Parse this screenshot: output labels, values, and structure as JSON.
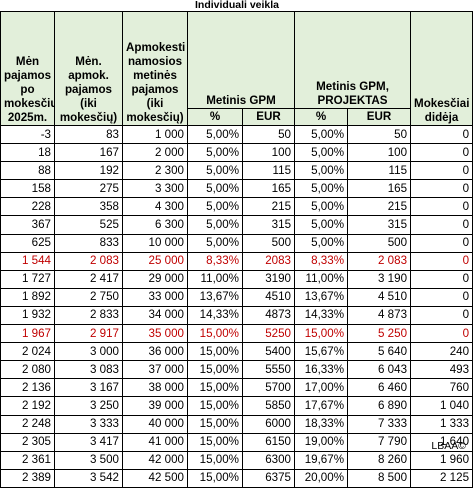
{
  "title": "Individuali veikla",
  "headers": {
    "c1": "Mėn pajamos po mokesčių 2025m.",
    "c2": "Mėn. apmok. pajamos (iki mokesčių)",
    "c3": "Apmokesti namosios metinės pajamos (iki mokesčių)",
    "gpm": "Metinis GPM",
    "gpm_proj": "Metinis GPM, PROJEKTAS",
    "increase": "Mokesčiai didėja",
    "pct": "%",
    "eur": "EUR"
  },
  "rows": [
    {
      "c1": "-3",
      "c2": "83",
      "c3": "1 000",
      "p1": "5,00%",
      "e1": "50",
      "p2": "5,00%",
      "e2": "50",
      "inc": "0",
      "red": false
    },
    {
      "c1": "18",
      "c2": "167",
      "c3": "2 000",
      "p1": "5,00%",
      "e1": "100",
      "p2": "5,00%",
      "e2": "100",
      "inc": "0",
      "red": false
    },
    {
      "c1": "88",
      "c2": "192",
      "c3": "2 300",
      "p1": "5,00%",
      "e1": "115",
      "p2": "5,00%",
      "e2": "115",
      "inc": "0",
      "red": false
    },
    {
      "c1": "158",
      "c2": "275",
      "c3": "3 300",
      "p1": "5,00%",
      "e1": "165",
      "p2": "5,00%",
      "e2": "165",
      "inc": "0",
      "red": false
    },
    {
      "c1": "228",
      "c2": "358",
      "c3": "4 300",
      "p1": "5,00%",
      "e1": "215",
      "p2": "5,00%",
      "e2": "215",
      "inc": "0",
      "red": false
    },
    {
      "c1": "367",
      "c2": "525",
      "c3": "6 300",
      "p1": "5,00%",
      "e1": "315",
      "p2": "5,00%",
      "e2": "315",
      "inc": "0",
      "red": false
    },
    {
      "c1": "625",
      "c2": "833",
      "c3": "10 000",
      "p1": "5,00%",
      "e1": "500",
      "p2": "5,00%",
      "e2": "500",
      "inc": "0",
      "red": false
    },
    {
      "c1": "1 544",
      "c2": "2 083",
      "c3": "25 000",
      "p1": "8,33%",
      "e1": "2083",
      "p2": "8,33%",
      "e2": "2 083",
      "inc": "0",
      "red": true
    },
    {
      "c1": "1 727",
      "c2": "2 417",
      "c3": "29 000",
      "p1": "11,00%",
      "e1": "3190",
      "p2": "11,00%",
      "e2": "3 190",
      "inc": "0",
      "red": false
    },
    {
      "c1": "1 892",
      "c2": "2 750",
      "c3": "33 000",
      "p1": "13,67%",
      "e1": "4510",
      "p2": "13,67%",
      "e2": "4 510",
      "inc": "0",
      "red": false
    },
    {
      "c1": "1 932",
      "c2": "2 833",
      "c3": "34 000",
      "p1": "14,33%",
      "e1": "4873",
      "p2": "14,33%",
      "e2": "4 873",
      "inc": "0",
      "red": false
    },
    {
      "c1": "1 967",
      "c2": "2 917",
      "c3": "35 000",
      "p1": "15,00%",
      "e1": "5250",
      "p2": "15,00%",
      "e2": "5 250",
      "inc": "0",
      "red": true
    },
    {
      "c1": "2 024",
      "c2": "3 000",
      "c3": "36 000",
      "p1": "15,00%",
      "e1": "5400",
      "p2": "15,67%",
      "e2": "5 640",
      "inc": "240",
      "red": false
    },
    {
      "c1": "2 080",
      "c2": "3 083",
      "c3": "37 000",
      "p1": "15,00%",
      "e1": "5550",
      "p2": "16,33%",
      "e2": "6 043",
      "inc": "493",
      "red": false
    },
    {
      "c1": "2 136",
      "c2": "3 167",
      "c3": "38 000",
      "p1": "15,00%",
      "e1": "5700",
      "p2": "17,00%",
      "e2": "6 460",
      "inc": "760",
      "red": false
    },
    {
      "c1": "2 192",
      "c2": "3 250",
      "c3": "39 000",
      "p1": "15,00%",
      "e1": "5850",
      "p2": "17,67%",
      "e2": "6 890",
      "inc": "1 040",
      "red": false
    },
    {
      "c1": "2 248",
      "c2": "3 333",
      "c3": "40 000",
      "p1": "15,00%",
      "e1": "6000",
      "p2": "18,33%",
      "e2": "7 333",
      "inc": "1 333",
      "red": false
    },
    {
      "c1": "2 305",
      "c2": "3 417",
      "c3": "41 000",
      "p1": "15,00%",
      "e1": "6150",
      "p2": "19,00%",
      "e2": "7 790",
      "inc": "1 640",
      "red": false
    },
    {
      "c1": "2 361",
      "c2": "3 500",
      "c3": "42 000",
      "p1": "15,00%",
      "e1": "6300",
      "p2": "19,67%",
      "e2": "8 260",
      "inc": "1 960",
      "red": false
    },
    {
      "c1": "2 389",
      "c2": "3 542",
      "c3": "42 500",
      "p1": "15,00%",
      "e1": "6375",
      "p2": "20,00%",
      "e2": "8 500",
      "inc": "2 125",
      "red": false
    }
  ],
  "footer": "LBAA©",
  "colors": {
    "header_bg": "#e2efda",
    "highlight_text": "#c00000"
  }
}
